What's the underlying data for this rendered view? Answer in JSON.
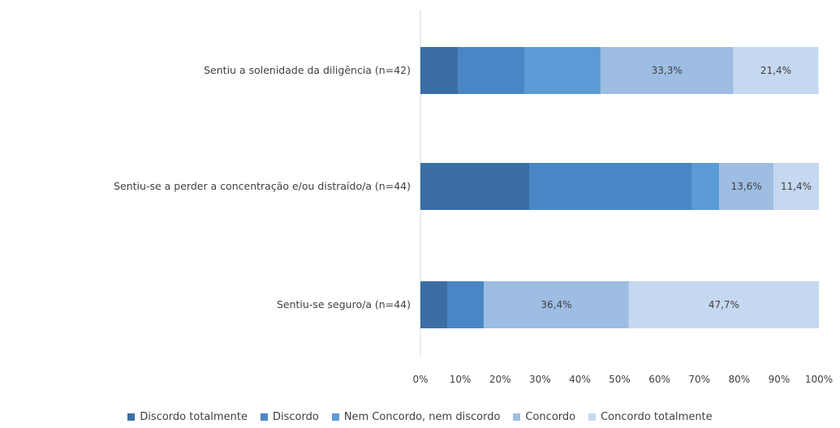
{
  "chart_data": {
    "type": "bar",
    "orientation": "horizontal",
    "stacked": "percent",
    "categories": [
      "Sentiu a solenidade da diligência (n=42)",
      "Sentiu-se a perder a concentração e/ou distraído/a (n=44)",
      "Sentiu-se seguro/a (n=44)"
    ],
    "series": [
      {
        "name": "Discordo totalmente",
        "color": "#3b6ea5",
        "values": [
          9.5,
          27.3,
          6.8
        ],
        "labels": [
          "",
          "",
          ""
        ]
      },
      {
        "name": "Discordo",
        "color": "#4a86c5",
        "values": [
          16.7,
          40.9,
          9.1
        ],
        "labels": [
          "",
          "",
          ""
        ]
      },
      {
        "name": "Nem Concordo, nem discordo",
        "color": "#5b9bd5",
        "values": [
          19.0,
          6.8,
          0.0
        ],
        "labels": [
          "",
          "",
          ""
        ]
      },
      {
        "name": "Concordo",
        "color": "#9dbde3",
        "values": [
          33.3,
          13.6,
          36.4
        ],
        "labels": [
          "33,3%",
          "13,6%",
          "36,4%"
        ]
      },
      {
        "name": "Concordo totalmente",
        "color": "#c5d8ef",
        "values": [
          21.4,
          11.4,
          47.7
        ],
        "labels": [
          "21,4%",
          "11,4%",
          "47,7%"
        ]
      }
    ],
    "xticks": [
      "0%",
      "10%",
      "20%",
      "30%",
      "40%",
      "50%",
      "60%",
      "70%",
      "80%",
      "90%",
      "100%"
    ],
    "xlim": [
      0,
      100
    ],
    "grid": false,
    "legend_position": "bottom"
  }
}
